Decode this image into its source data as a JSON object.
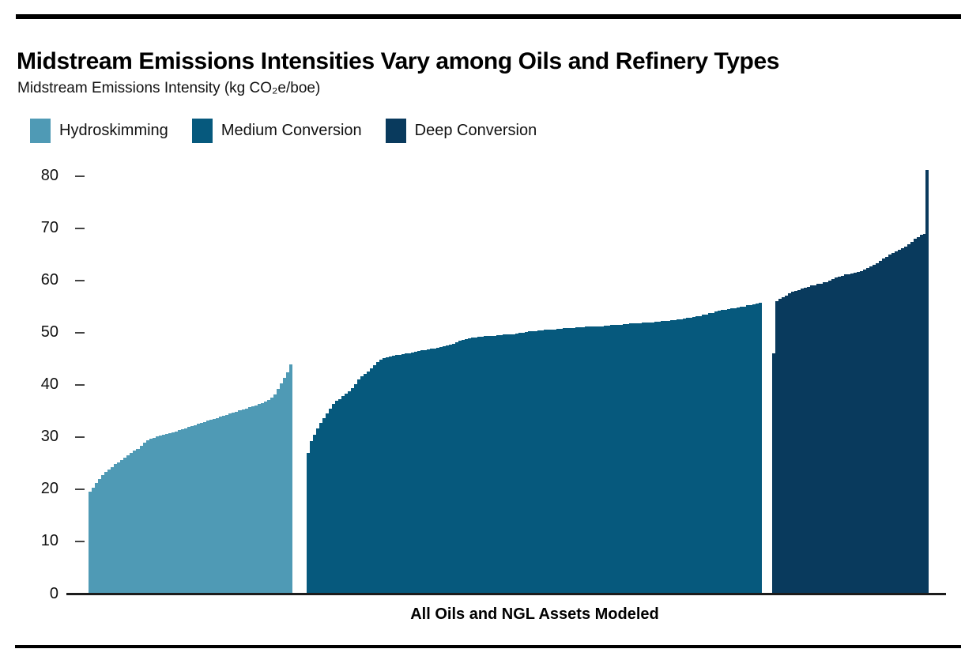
{
  "header": {
    "title": "Midstream Emissions Intensities Vary among Oils and Refinery Types",
    "subtitle": "Midstream Emissions Intensity (kg CO₂e/boe)"
  },
  "colors": {
    "hydroskimming": "#4F9AB5",
    "medium_conversion": "#06597D",
    "deep_conversion": "#093A5D",
    "rule": "#000000",
    "axis": "#1c1c1c"
  },
  "chart_data": {
    "type": "bar",
    "title": "Midstream Emissions Intensities Vary among Oils and Refinery Types",
    "ylabel": "Midstream Emissions Intensity (kg CO₂e/boe)",
    "xlabel": "All Oils and NGL Assets Modeled",
    "ylim": [
      0,
      80
    ],
    "yticks": [
      0,
      10,
      20,
      30,
      40,
      50,
      60,
      70,
      80
    ],
    "grid": false,
    "legend_position": "top-left",
    "bar_gap": 0,
    "note": "Each bar is one oil/NGL asset; assets sorted ascending within each refinery-type group",
    "series": [
      {
        "name": "Hydroskimming",
        "color": "#4F9AB5",
        "values": [
          19.6,
          20.4,
          21.3,
          22.1,
          22.8,
          23.4,
          23.9,
          24.4,
          24.9,
          25.3,
          25.7,
          26.1,
          26.6,
          27.1,
          27.5,
          27.9,
          28.5,
          29.1,
          29.5,
          29.8,
          30.0,
          30.2,
          30.4,
          30.5,
          30.7,
          30.8,
          31.0,
          31.2,
          31.4,
          31.6,
          31.8,
          32.0,
          32.2,
          32.4,
          32.6,
          32.8,
          33.0,
          33.2,
          33.4,
          33.6,
          33.8,
          34.0,
          34.2,
          34.4,
          34.6,
          34.8,
          35.0,
          35.2,
          35.4,
          35.6,
          35.8,
          36.0,
          36.2,
          36.4,
          36.6,
          36.9,
          37.2,
          37.6,
          38.3,
          39.3,
          40.4,
          41.4,
          42.5,
          44.0
        ]
      },
      {
        "name": "Medium Conversion",
        "color": "#06597D",
        "values": [
          27.1,
          29.4,
          30.6,
          31.8,
          32.8,
          33.8,
          34.6,
          35.6,
          36.4,
          37.0,
          37.4,
          37.9,
          38.4,
          38.9,
          39.4,
          40.3,
          41.2,
          41.7,
          42.2,
          42.7,
          43.2,
          43.9,
          44.5,
          44.9,
          45.2,
          45.4,
          45.5,
          45.6,
          45.8,
          45.9,
          46.0,
          46.1,
          46.2,
          46.3,
          46.5,
          46.6,
          46.7,
          46.8,
          46.9,
          47.0,
          47.1,
          47.2,
          47.3,
          47.5,
          47.6,
          47.8,
          48.0,
          48.3,
          48.5,
          48.7,
          48.9,
          49.0,
          49.1,
          49.2,
          49.3,
          49.3,
          49.4,
          49.4,
          49.5,
          49.5,
          49.6,
          49.6,
          49.7,
          49.7,
          49.8,
          49.8,
          49.9,
          50.0,
          50.1,
          50.2,
          50.3,
          50.4,
          50.4,
          50.5,
          50.5,
          50.6,
          50.6,
          50.7,
          50.7,
          50.8,
          50.8,
          50.9,
          50.9,
          51.0,
          51.0,
          51.1,
          51.1,
          51.1,
          51.2,
          51.2,
          51.2,
          51.3,
          51.3,
          51.3,
          51.4,
          51.4,
          51.5,
          51.5,
          51.6,
          51.6,
          51.7,
          51.7,
          51.8,
          51.8,
          51.9,
          51.9,
          52.0,
          52.0,
          52.1,
          52.1,
          52.2,
          52.2,
          52.3,
          52.3,
          52.4,
          52.5,
          52.5,
          52.6,
          52.7,
          52.8,
          52.9,
          53.0,
          53.1,
          53.2,
          53.3,
          53.5,
          53.6,
          53.8,
          53.9,
          54.1,
          54.3,
          54.4,
          54.5,
          54.6,
          54.7,
          54.8,
          54.9,
          55.0,
          55.1,
          55.3,
          55.4,
          55.5,
          55.6,
          55.8
        ]
      },
      {
        "name": "Deep Conversion",
        "color": "#093A5D",
        "values": [
          46.1,
          56.1,
          56.5,
          56.8,
          57.2,
          57.6,
          57.9,
          58.1,
          58.3,
          58.5,
          58.7,
          58.9,
          59.1,
          59.2,
          59.4,
          59.5,
          59.7,
          59.8,
          60.1,
          60.4,
          60.6,
          60.8,
          61.0,
          61.2,
          61.3,
          61.4,
          61.5,
          61.7,
          61.9,
          62.2,
          62.5,
          62.7,
          63.0,
          63.4,
          63.8,
          64.2,
          64.6,
          65.0,
          65.4,
          65.7,
          66.0,
          66.2,
          66.6,
          67.0,
          67.4,
          68.0,
          68.4,
          68.8,
          69.0,
          81.2
        ]
      }
    ]
  }
}
